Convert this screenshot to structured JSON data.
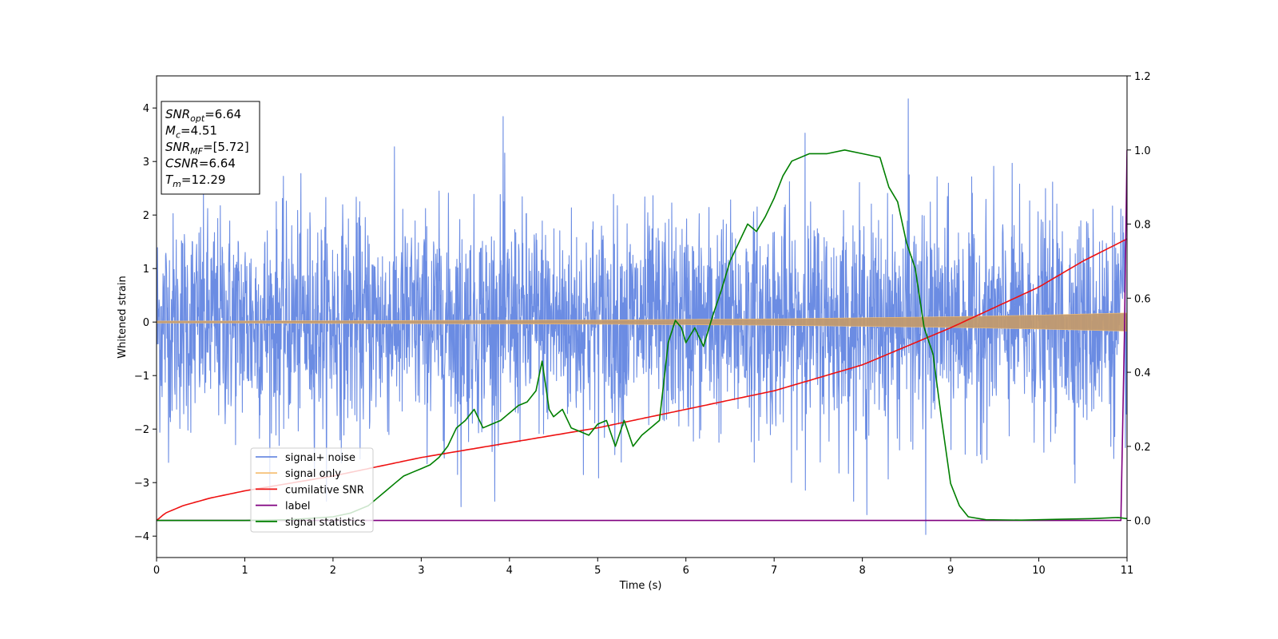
{
  "chart_data": {
    "type": "line",
    "xlabel": "Time (s)",
    "ylabel": "Whitened strain",
    "xlim": [
      0,
      11
    ],
    "ylim": [
      -4.4,
      4.6
    ],
    "y2lim": [
      -0.1,
      1.2
    ],
    "x_ticks": [
      0,
      1,
      2,
      3,
      4,
      5,
      6,
      7,
      8,
      9,
      10,
      11
    ],
    "y_ticks": [
      -4,
      -3,
      -2,
      -1,
      0,
      1,
      2,
      3,
      4
    ],
    "y2_ticks": [
      0.0,
      0.2,
      0.4,
      0.6,
      0.8,
      1.0,
      1.2
    ],
    "y2_tick_labels": [
      "0.0",
      "0.2",
      "0.4",
      "0.6",
      "0.8",
      "1.0",
      "1.2"
    ],
    "grid": false,
    "legend_position": "lower-left",
    "colors": {
      "noise": "#6b8ce3",
      "signal": "#f5c27a",
      "cumulative": "#ee1111",
      "label": "#800080",
      "statistics": "#007f00"
    },
    "info_box": {
      "lines": [
        {
          "var": "SNR",
          "sub": "opt",
          "value": "=6.64"
        },
        {
          "var": "M",
          "sub": "c",
          "value": "=4.51"
        },
        {
          "var": "SNR",
          "sub": "MF",
          "value": "=[5.72]"
        },
        {
          "var": "CSNR",
          "sub": "",
          "value": "=6.64"
        },
        {
          "var": "T",
          "sub": "m",
          "value": "=12.29"
        }
      ]
    },
    "series": [
      {
        "name": "signal+ noise",
        "axis": "left",
        "kind": "noise",
        "amplitude_sd": 1.0,
        "peaks": [
          {
            "x": 8.52,
            "y": 4.17
          },
          {
            "x": 3.93,
            "y": 3.84
          },
          {
            "x": 7.35,
            "y": 3.53
          },
          {
            "x": 8.72,
            "y": -3.97
          },
          {
            "x": 8.05,
            "y": -3.6
          },
          {
            "x": 3.45,
            "y": -3.45
          }
        ]
      },
      {
        "name": "signal only",
        "axis": "left",
        "kind": "envelope",
        "envelope_x": [
          0,
          1,
          2,
          3,
          4,
          5,
          6,
          7,
          8,
          9,
          10,
          11
        ],
        "envelope_y": [
          0.02,
          0.02,
          0.025,
          0.03,
          0.035,
          0.04,
          0.05,
          0.06,
          0.08,
          0.1,
          0.13,
          0.17
        ]
      },
      {
        "name": "cumilative SNR",
        "axis": "right",
        "x": [
          0,
          0.1,
          0.3,
          0.6,
          1,
          2,
          3,
          4,
          5,
          6,
          7,
          8,
          9,
          10,
          10.5,
          11
        ],
        "y": [
          0.0,
          0.02,
          0.04,
          0.06,
          0.08,
          0.12,
          0.17,
          0.21,
          0.25,
          0.3,
          0.35,
          0.42,
          0.52,
          0.63,
          0.7,
          0.76
        ]
      },
      {
        "name": "label",
        "axis": "right",
        "x": [
          0,
          10.9,
          10.93,
          10.97,
          11
        ],
        "y": [
          0.0,
          0.0,
          0.0,
          0.5,
          1.0
        ]
      },
      {
        "name": "signal statistics",
        "axis": "right",
        "x": [
          0,
          0.5,
          1,
          1.5,
          2.0,
          2.2,
          2.4,
          2.5,
          2.6,
          2.7,
          2.8,
          2.9,
          3.0,
          3.1,
          3.2,
          3.3,
          3.4,
          3.5,
          3.6,
          3.7,
          3.8,
          3.9,
          4.0,
          4.1,
          4.2,
          4.3,
          4.37,
          4.45,
          4.5,
          4.6,
          4.7,
          4.8,
          4.9,
          5.0,
          5.1,
          5.2,
          5.3,
          5.4,
          5.5,
          5.6,
          5.7,
          5.8,
          5.88,
          5.95,
          6.0,
          6.1,
          6.2,
          6.3,
          6.4,
          6.5,
          6.6,
          6.7,
          6.8,
          6.9,
          7.0,
          7.1,
          7.2,
          7.4,
          7.6,
          7.8,
          8.0,
          8.2,
          8.3,
          8.4,
          8.5,
          8.6,
          8.7,
          8.8,
          8.9,
          9.0,
          9.1,
          9.2,
          9.4,
          9.8,
          10.2,
          10.6,
          10.9,
          11.0
        ],
        "y": [
          0.0,
          0.0,
          0.0,
          0.002,
          0.01,
          0.02,
          0.04,
          0.06,
          0.08,
          0.1,
          0.12,
          0.13,
          0.14,
          0.15,
          0.17,
          0.2,
          0.25,
          0.27,
          0.3,
          0.25,
          0.26,
          0.27,
          0.29,
          0.31,
          0.32,
          0.35,
          0.43,
          0.3,
          0.28,
          0.3,
          0.25,
          0.24,
          0.23,
          0.26,
          0.27,
          0.2,
          0.27,
          0.2,
          0.23,
          0.25,
          0.27,
          0.48,
          0.54,
          0.52,
          0.48,
          0.52,
          0.47,
          0.55,
          0.62,
          0.7,
          0.75,
          0.8,
          0.78,
          0.82,
          0.87,
          0.93,
          0.97,
          0.99,
          0.99,
          1.0,
          0.99,
          0.98,
          0.9,
          0.86,
          0.75,
          0.68,
          0.52,
          0.45,
          0.27,
          0.1,
          0.04,
          0.01,
          0.002,
          0.001,
          0.003,
          0.005,
          0.008,
          0.005
        ]
      }
    ]
  }
}
